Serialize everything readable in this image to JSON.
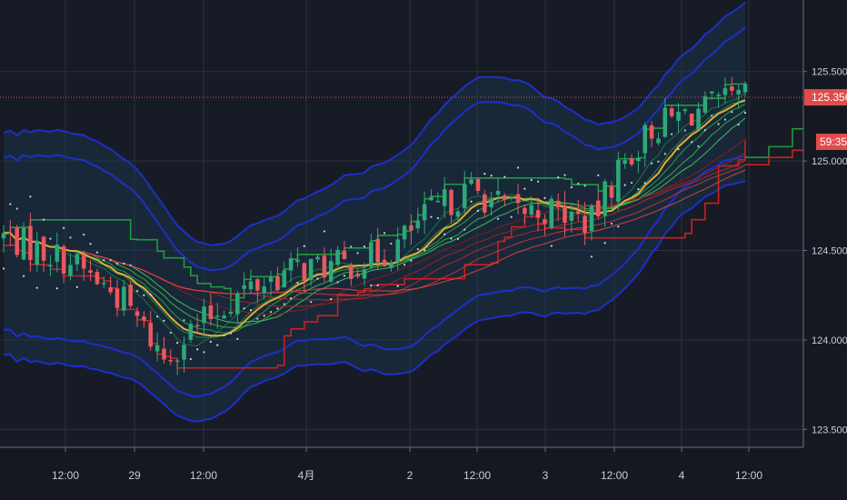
{
  "chart_data": {
    "type": "candlestick",
    "title": "",
    "ylim": [
      123.4,
      125.9
    ],
    "y_ticks": [
      "125.500",
      "125.000",
      "124.500",
      "124.000",
      "123.500"
    ],
    "y_tick_values": [
      125.5,
      125.0,
      124.5,
      124.0,
      123.5
    ],
    "x_ticks": [
      "12:00",
      "29",
      "12:00",
      "4月",
      "2",
      "12:00",
      "3",
      "12:00",
      "4",
      "12:00"
    ],
    "grid": true,
    "last_price": "125.356",
    "last_price_value": 125.356,
    "countdown": "59:35",
    "colors": {
      "background": "#151821",
      "grid": "#2c3040",
      "up": "#2ea879",
      "down": "#e8595e",
      "band": "#1d2fc9",
      "dc_upper": "#229a3a",
      "dc_lower": "#cc2020",
      "ma_fast": "#e0ac3a",
      "price_line": "#e04b4b",
      "label_bg": "#e04b4b",
      "dots": "#c8d4e8"
    }
  }
}
